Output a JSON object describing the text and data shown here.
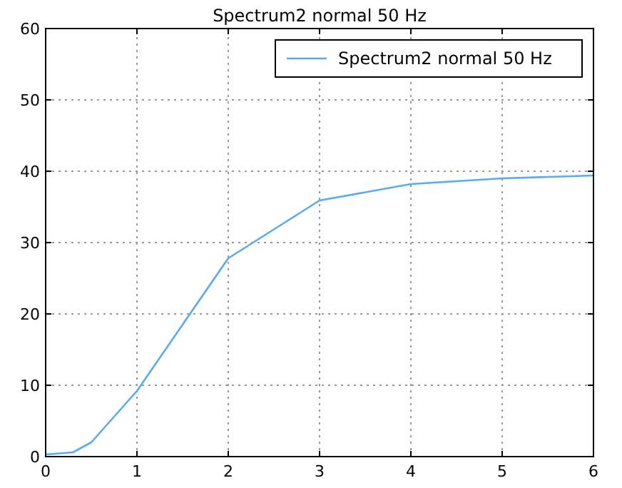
{
  "chart_data": {
    "type": "line",
    "title": "Spectrum2 normal 50 Hz",
    "x": [
      0,
      0.3,
      0.5,
      1,
      2,
      3,
      4,
      5,
      6
    ],
    "series": [
      {
        "name": "Spectrum2 normal 50 Hz",
        "color": "#5aa9f5",
        "values": [
          0.3,
          0.6,
          2,
          9.2,
          27.8,
          35.9,
          38.2,
          39,
          39.4
        ]
      }
    ],
    "xlim": [
      0,
      6
    ],
    "xticks": [
      0,
      1,
      2,
      3,
      4,
      5,
      6
    ],
    "ylim": [
      0,
      60
    ],
    "yticks": [
      0,
      10,
      20,
      30,
      40,
      50,
      60
    ],
    "grid": true,
    "legend": "top right",
    "marker": "none",
    "line_style": "solid"
  }
}
